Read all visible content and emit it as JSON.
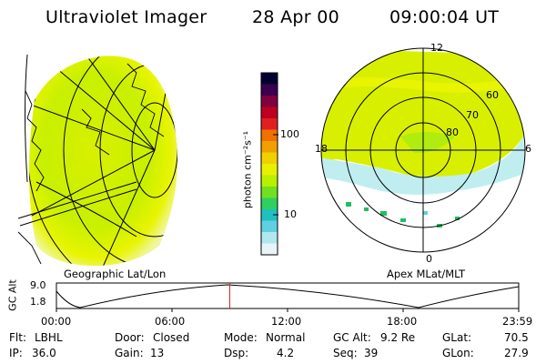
{
  "header": {
    "instrument": "Ultraviolet Imager",
    "date": "28 Apr 00",
    "time": "09:00:04 UT"
  },
  "colorbar": {
    "unit_label": "photon cm⁻²s⁻¹",
    "ticks": [
      "100",
      "10"
    ],
    "colors": [
      "#000030",
      "#3a0050",
      "#800040",
      "#c00020",
      "#e02020",
      "#f07000",
      "#f0a000",
      "#f0d000",
      "#e8f000",
      "#b8f000",
      "#70e020",
      "#30d060",
      "#20c0c0",
      "#60d0e0",
      "#b0e8f0",
      "#e8f4f8"
    ]
  },
  "geo_panel": {
    "caption": "Geographic Lat/Lon"
  },
  "polar_panel": {
    "caption": "Apex MLat/MLT",
    "hour_labels": {
      "top": "12",
      "left": "18",
      "right": "6",
      "bottom": "0"
    },
    "lat_labels": [
      "60",
      "70",
      "80"
    ]
  },
  "altitude_plot": {
    "ylabel": "GC Alt",
    "yticks": [
      "9.0",
      "1.8"
    ],
    "xticks": [
      "00:00",
      "06:00",
      "12:00",
      "18:00",
      "23:59"
    ],
    "current_time_marker_hour": 9.0
  },
  "status": {
    "flt_label": "Flt:",
    "flt_value": "LBHL",
    "ip_label": "IP:",
    "ip_value": "36.0",
    "door_label": "Door:",
    "door_value": "Closed",
    "gain_label": "Gain:",
    "gain_value": "13",
    "mode_label": "Mode:",
    "mode_value": "Normal",
    "dsp_label": "Dsp:",
    "dsp_value": "4.2",
    "gcalt_label": "GC Alt:",
    "gcalt_value": "9.2 Re",
    "seq_label": "Seq:",
    "seq_value": "39",
    "glat_label": "GLat:",
    "glat_value": "70.5",
    "glon_label": "GLon:",
    "glon_value": "27.9"
  }
}
